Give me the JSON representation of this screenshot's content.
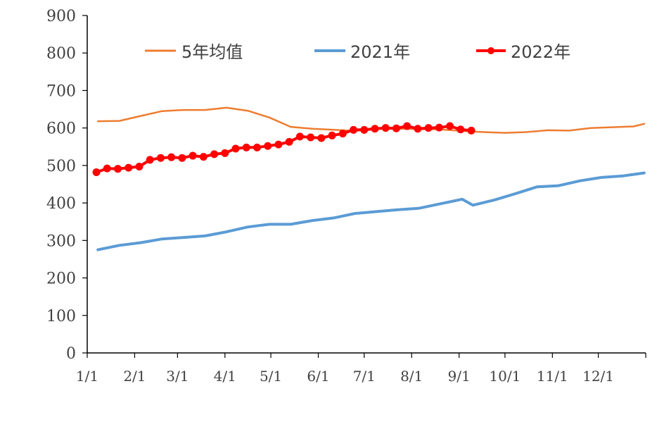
{
  "chart_data": {
    "type": "line",
    "title": "",
    "xlabel": "",
    "ylabel": "",
    "ylim": [
      0,
      900
    ],
    "yticks": [
      0,
      100,
      200,
      300,
      400,
      500,
      600,
      700,
      800,
      900
    ],
    "xticks": [
      "1/1",
      "2/1",
      "3/1",
      "4/1",
      "5/1",
      "6/1",
      "7/1",
      "8/1",
      "9/1",
      "10/1",
      "11/1",
      "12/1"
    ],
    "grid": false,
    "legend": "top",
    "series": [
      {
        "name": "5年均值",
        "color": "#ED7D31",
        "marker": false,
        "points": [
          [
            "1/8",
            618
          ],
          [
            "1/22",
            619
          ],
          [
            "2/5",
            632
          ],
          [
            "2/19",
            645
          ],
          [
            "3/5",
            648
          ],
          [
            "3/19",
            648
          ],
          [
            "4/2",
            654
          ],
          [
            "4/16",
            646
          ],
          [
            "4/30",
            628
          ],
          [
            "5/14",
            603
          ],
          [
            "5/28",
            598
          ],
          [
            "6/11",
            595
          ],
          [
            "6/25",
            592
          ],
          [
            "7/9",
            598
          ],
          [
            "7/23",
            598
          ],
          [
            "8/6",
            597
          ],
          [
            "8/20",
            596
          ],
          [
            "9/3",
            592
          ],
          [
            "9/17",
            589
          ],
          [
            "10/1",
            587
          ],
          [
            "10/15",
            589
          ],
          [
            "10/29",
            594
          ],
          [
            "11/12",
            593
          ],
          [
            "11/26",
            600
          ],
          [
            "12/10",
            602
          ],
          [
            "12/24",
            604
          ],
          [
            "12/31",
            611
          ]
        ]
      },
      {
        "name": "2021年",
        "color": "#5B9BD5",
        "marker": false,
        "points": [
          [
            "1/8",
            275
          ],
          [
            "1/22",
            287
          ],
          [
            "2/5",
            294
          ],
          [
            "2/19",
            304
          ],
          [
            "3/5",
            308
          ],
          [
            "3/19",
            312
          ],
          [
            "4/2",
            323
          ],
          [
            "4/16",
            336
          ],
          [
            "4/30",
            343
          ],
          [
            "5/14",
            343
          ],
          [
            "5/28",
            353
          ],
          [
            "6/11",
            360
          ],
          [
            "6/25",
            372
          ],
          [
            "7/9",
            377
          ],
          [
            "7/23",
            382
          ],
          [
            "8/6",
            386
          ],
          [
            "8/20",
            398
          ],
          [
            "9/3",
            410
          ],
          [
            "9/10",
            394
          ],
          [
            "9/24",
            408
          ],
          [
            "10/8",
            425
          ],
          [
            "10/22",
            443
          ],
          [
            "11/5",
            446
          ],
          [
            "11/19",
            459
          ],
          [
            "12/3",
            468
          ],
          [
            "12/17",
            472
          ],
          [
            "12/31",
            480
          ]
        ]
      },
      {
        "name": "2022年",
        "color": "#FF0000",
        "marker": true,
        "points": [
          [
            "1/7",
            482
          ],
          [
            "1/14",
            492
          ],
          [
            "1/21",
            491
          ],
          [
            "1/28",
            494
          ],
          [
            "2/4",
            497
          ],
          [
            "2/11",
            515
          ],
          [
            "2/18",
            520
          ],
          [
            "2/25",
            522
          ],
          [
            "3/4",
            520
          ],
          [
            "3/11",
            526
          ],
          [
            "3/18",
            523
          ],
          [
            "3/25",
            530
          ],
          [
            "4/1",
            533
          ],
          [
            "4/8",
            545
          ],
          [
            "4/15",
            548
          ],
          [
            "4/22",
            548
          ],
          [
            "4/29",
            552
          ],
          [
            "5/6",
            556
          ],
          [
            "5/13",
            563
          ],
          [
            "5/20",
            577
          ],
          [
            "5/27",
            575
          ],
          [
            "6/3",
            573
          ],
          [
            "6/10",
            580
          ],
          [
            "6/17",
            585
          ],
          [
            "6/24",
            595
          ],
          [
            "7/1",
            595
          ],
          [
            "7/8",
            598
          ],
          [
            "7/15",
            600
          ],
          [
            "7/22",
            599
          ],
          [
            "7/29",
            605
          ],
          [
            "8/5",
            598
          ],
          [
            "8/12",
            600
          ],
          [
            "8/19",
            601
          ],
          [
            "8/26",
            605
          ],
          [
            "9/2",
            596
          ],
          [
            "9/9",
            593
          ]
        ]
      }
    ]
  }
}
